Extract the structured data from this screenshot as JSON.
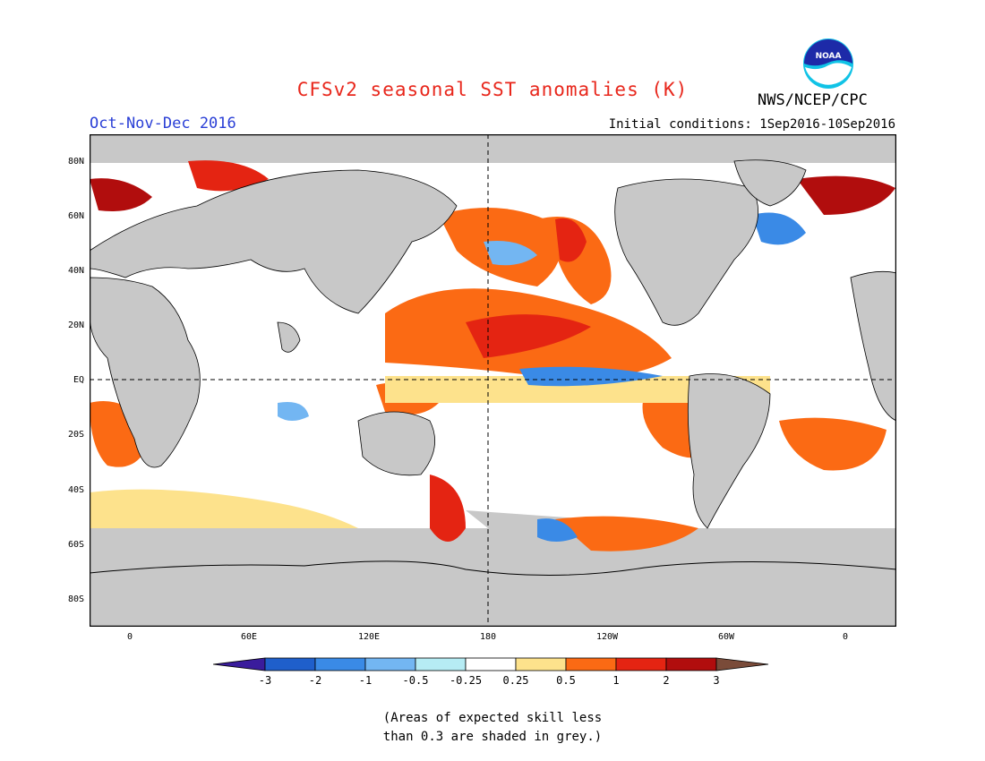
{
  "title": "CFSv2 seasonal SST anomalies (K)",
  "agency": "NWS/NCEP/CPC",
  "logo_text": "NOAA",
  "season": "Oct-Nov-Dec 2016",
  "initial_conditions": "Initial conditions: 1Sep2016-10Sep2016",
  "lat_labels": [
    "80N",
    "60N",
    "40N",
    "20N",
    "EQ",
    "20S",
    "40S",
    "60S",
    "80S"
  ],
  "lon_labels": [
    "0",
    "60E",
    "120E",
    "180",
    "120W",
    "60W",
    "0"
  ],
  "colorbar": {
    "levels": [
      "-3",
      "-2",
      "-1",
      "-0.5",
      "-0.25",
      "0.25",
      "0.5",
      "1",
      "2",
      "3"
    ],
    "colors": [
      "#3a1c9c",
      "#1f5fcb",
      "#3a8ae6",
      "#73b6f2",
      "#b6ecf4",
      "#ffffff",
      "#fde28c",
      "#fb6a14",
      "#e42412",
      "#b10d0d",
      "#7a4b39"
    ]
  },
  "map_colors": {
    "land": "#c8c8c8",
    "no_skill_grey": "#c8c8c8",
    "ocean_neutral": "#ffffff"
  },
  "note_line1": "(Areas of expected skill less",
  "note_line2": "than 0.3 are shaded in grey.)"
}
